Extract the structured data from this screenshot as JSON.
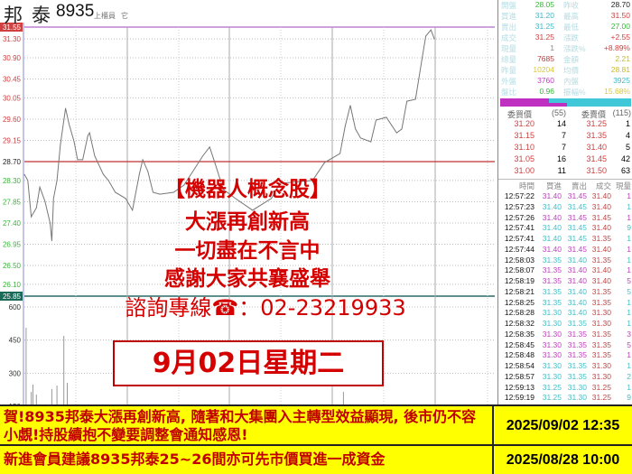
{
  "header": {
    "name": "邦泰",
    "code": "8935",
    "market": "上櫃員",
    "extra": "它"
  },
  "colors": {
    "up": "#d04040",
    "down": "#3cb43c",
    "buy": "#c040c0",
    "sell": "#40c0c8",
    "prev_close_line": "#c03030",
    "price_line": "#777777"
  },
  "chart_data": {
    "type": "line",
    "y_ticks": [
      "31.55",
      "31.30",
      "30.90",
      "30.45",
      "30.05",
      "29.60",
      "29.15",
      "28.70",
      "28.30",
      "27.85",
      "27.40",
      "26.95",
      "26.50",
      "26.10",
      "25.85"
    ],
    "ylim": [
      25.85,
      31.55
    ],
    "prev_close": 28.7,
    "volume_ticks": [
      "600",
      "450",
      "300",
      "150"
    ],
    "grid": true,
    "price": [
      [
        "09:00",
        28.43
      ],
      [
        "09:02",
        28.3
      ],
      [
        "09:04",
        27.53
      ],
      [
        "09:07",
        27.72
      ],
      [
        "09:09",
        28.16
      ],
      [
        "09:12",
        27.86
      ],
      [
        "09:15",
        27.4
      ],
      [
        "09:16",
        27.02
      ],
      [
        "09:17",
        27.92
      ],
      [
        "09:19",
        28.3
      ],
      [
        "09:21",
        29.06
      ],
      [
        "09:24",
        29.83
      ],
      [
        "09:26",
        29.5
      ],
      [
        "09:29",
        29.12
      ],
      [
        "09:31",
        28.74
      ],
      [
        "09:34",
        28.74
      ],
      [
        "09:37",
        29.25
      ],
      [
        "09:38",
        29.31
      ],
      [
        "09:41",
        28.82
      ],
      [
        "09:46",
        28.43
      ],
      [
        "09:49",
        28.3
      ],
      [
        "09:53",
        28.05
      ],
      [
        "09:59",
        27.92
      ],
      [
        "10:03",
        27.67
      ],
      [
        "10:07",
        28.43
      ],
      [
        "10:09",
        28.74
      ],
      [
        "10:12",
        28.49
      ],
      [
        "10:15",
        28.05
      ],
      [
        "10:19",
        28.01
      ],
      [
        "10:27",
        28.05
      ],
      [
        "10:33",
        28.2
      ],
      [
        "10:44",
        28.82
      ],
      [
        "10:48",
        29.01
      ],
      [
        "10:51",
        28.68
      ],
      [
        "10:56",
        28.11
      ],
      [
        "11:03",
        27.92
      ],
      [
        "11:13",
        27.67
      ],
      [
        "11:24",
        27.92
      ],
      [
        "11:29",
        28.24
      ],
      [
        "11:48",
        28.3
      ],
      [
        "11:55",
        28.68
      ],
      [
        "12:04",
        28.87
      ],
      [
        "12:07",
        29.45
      ],
      [
        "12:10",
        29.89
      ],
      [
        "12:13",
        29.39
      ],
      [
        "12:16",
        29.2
      ],
      [
        "12:22",
        29.12
      ],
      [
        "12:25",
        29.58
      ],
      [
        "12:31",
        29.64
      ],
      [
        "12:37",
        29.31
      ],
      [
        "12:40",
        29.39
      ],
      [
        "12:43",
        29.98
      ],
      [
        "12:48",
        30.02
      ],
      [
        "12:52",
        30.92
      ],
      [
        "12:54",
        31.36
      ],
      [
        "12:57",
        31.49
      ],
      [
        "12:59",
        31.3
      ]
    ],
    "volume": [
      [
        "09:01",
        506
      ],
      [
        "09:04",
        215
      ],
      [
        "09:05",
        248
      ],
      [
        "09:07",
        203
      ],
      [
        "09:16",
        228
      ],
      [
        "09:19",
        244
      ],
      [
        "09:23",
        469
      ],
      [
        "09:25",
        256
      ],
      [
        "12:06",
        215
      ]
    ]
  },
  "overlay": {
    "line1": "【機器人概念股】",
    "line2": "大漲再創新高",
    "line3": "一切盡在不言中",
    "line4": "感謝大家共襄盛舉",
    "line5": "諮詢專線☎：02-23219933",
    "date": "9月02日星期二"
  },
  "quote": {
    "rows": [
      {
        "l": "開盤",
        "lv": "28.05",
        "lc": "#3cb43c",
        "r": "昨收",
        "rv": "28.70",
        "rc": "#222"
      },
      {
        "l": "買進",
        "lv": "31.20",
        "lc": "#40b8c8",
        "r": "最高",
        "rv": "31.50",
        "rc": "#d04040"
      },
      {
        "l": "賣出",
        "lv": "31.25",
        "lc": "#40b8c8",
        "r": "最低",
        "rv": "27.00",
        "rc": "#3cb43c"
      },
      {
        "l": "成交",
        "lv": "31.25",
        "lc": "#d04040",
        "r": "漲跌",
        "rv": "+2.55",
        "rc": "#d04040"
      },
      {
        "l": "現量",
        "lv": "1",
        "lc": "#888",
        "r": "漲跌%",
        "rv": "+8.89%",
        "rc": "#d04040"
      },
      {
        "l": "總量",
        "lv": "7685",
        "lc": "#b04040",
        "r": "金額",
        "rv": "2.21",
        "rc": "#c8b830"
      },
      {
        "l": "昨量",
        "lv": "10204",
        "lc": "#d8c840",
        "r": "均價",
        "rv": "28.81",
        "rc": "#c8b830"
      },
      {
        "l": "外盤",
        "lv": "3760",
        "lc": "#c040c0",
        "r": "內盤",
        "rv": "3925",
        "rc": "#40b8c8"
      },
      {
        "l": "盤比",
        "lv": "0.96",
        "lc": "#3cb43c",
        "r": "振幅%",
        "rv": "15.68%",
        "rc": "#d8c840"
      }
    ],
    "ratio_bars": [
      0.37,
      0.51
    ]
  },
  "orderbook": {
    "bid_label": "委買價",
    "bid_total": "(55)",
    "ask_label": "委賣價",
    "ask_total": "(115)",
    "rows": [
      [
        "31.20",
        "14",
        "31.25",
        "1"
      ],
      [
        "31.15",
        "7",
        "31.35",
        "4"
      ],
      [
        "31.10",
        "7",
        "31.40",
        "5"
      ],
      [
        "31.05",
        "16",
        "31.45",
        "42"
      ],
      [
        "31.00",
        "11",
        "31.50",
        "63"
      ]
    ]
  },
  "trades": {
    "headers": [
      "時間",
      "買進",
      "賣出",
      "成交",
      "現量"
    ],
    "rows": [
      [
        "12:57:22",
        "31.40",
        "31.45",
        "31.40",
        "1",
        "out"
      ],
      [
        "12:57:23",
        "31.40",
        "31.45",
        "31.40",
        "1",
        "in"
      ],
      [
        "12:57:26",
        "31.40",
        "31.45",
        "31.45",
        "1",
        "out"
      ],
      [
        "12:57:41",
        "31.40",
        "31.45",
        "31.40",
        "9",
        "in"
      ],
      [
        "12:57:41",
        "31.40",
        "31.45",
        "31.35",
        "1",
        "in"
      ],
      [
        "12:57:44",
        "31.40",
        "31.45",
        "31.40",
        "1",
        "out"
      ],
      [
        "12:58:03",
        "31.35",
        "31.40",
        "31.35",
        "1",
        "in"
      ],
      [
        "12:58:07",
        "31.35",
        "31.40",
        "31.40",
        "1",
        "out"
      ],
      [
        "12:58:19",
        "31.35",
        "31.40",
        "31.40",
        "5",
        "out"
      ],
      [
        "12:58:21",
        "31.35",
        "31.40",
        "31.35",
        "5",
        "in"
      ],
      [
        "12:58:25",
        "31.35",
        "31.40",
        "31.35",
        "1",
        "in"
      ],
      [
        "12:58:28",
        "31.30",
        "31.40",
        "31.30",
        "1",
        "in"
      ],
      [
        "12:58:32",
        "31.30",
        "31.35",
        "31.30",
        "1",
        "in"
      ],
      [
        "12:58:35",
        "31.30",
        "31.35",
        "31.35",
        "3",
        "out"
      ],
      [
        "12:58:45",
        "31.30",
        "31.35",
        "31.35",
        "5",
        "out"
      ],
      [
        "12:58:48",
        "31.30",
        "31.35",
        "31.35",
        "1",
        "out"
      ],
      [
        "12:58:54",
        "31.30",
        "31.35",
        "31.30",
        "1",
        "in"
      ],
      [
        "12:58:57",
        "31.30",
        "31.35",
        "31.30",
        "2",
        "in"
      ],
      [
        "12:59:13",
        "31.25",
        "31.30",
        "31.25",
        "1",
        "in"
      ],
      [
        "12:59:19",
        "31.25",
        "31.30",
        "31.25",
        "9",
        "in"
      ]
    ]
  },
  "banner": {
    "msg1": "賀!8935邦泰大漲再創新高, 隨著和大集團入主轉型效益顯現, 後市仍不容小覷!持股續抱不變要調整會通知感恩!",
    "date1": "2025/09/02 12:35",
    "msg2": "新進會員建議8935邦泰25~26間亦可先市價買進一成資金",
    "date2": "2025/08/28 10:00"
  }
}
